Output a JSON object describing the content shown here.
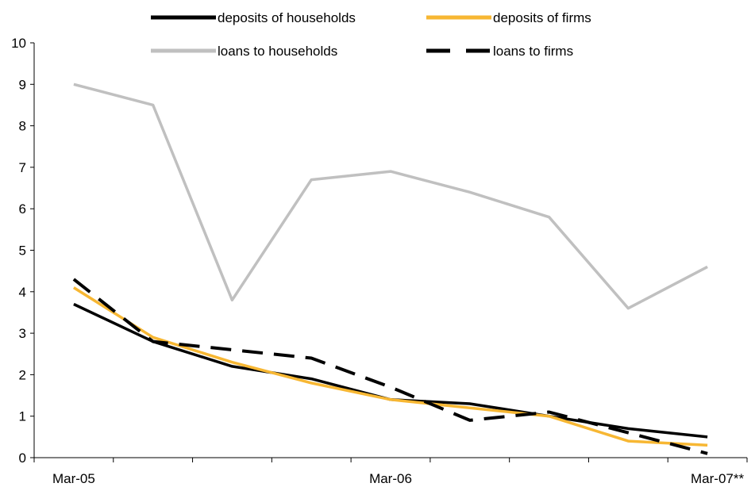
{
  "chart_data": {
    "type": "line",
    "title": "",
    "xlabel": "",
    "ylabel": "",
    "ylim": [
      0,
      10
    ],
    "yticks": [
      0,
      1,
      2,
      3,
      4,
      5,
      6,
      7,
      8,
      9,
      10
    ],
    "x_points": 9,
    "x_tick_labels": [
      {
        "label": "Mar-05",
        "point": 0
      },
      {
        "label": "Mar-06",
        "point": 4
      },
      {
        "label": "Mar-07**",
        "point": 8
      }
    ],
    "grid": false,
    "legend": "top",
    "series": [
      {
        "name": "deposits of households",
        "color": "#000000",
        "style": "solid",
        "values": [
          3.7,
          2.8,
          2.2,
          1.9,
          1.4,
          1.3,
          1.0,
          0.7,
          0.5
        ]
      },
      {
        "name": "deposits of firms",
        "color": "#F7B733",
        "style": "solid",
        "values": [
          4.1,
          2.9,
          2.3,
          1.8,
          1.4,
          1.2,
          1.0,
          0.4,
          0.3
        ]
      },
      {
        "name": "loans to households",
        "color": "#C0C0C0",
        "style": "solid",
        "values": [
          9.0,
          8.5,
          3.8,
          6.7,
          6.9,
          6.4,
          5.8,
          3.6,
          4.6
        ]
      },
      {
        "name": "loans to firms",
        "color": "#000000",
        "style": "dashed",
        "values": [
          4.3,
          2.8,
          2.6,
          2.4,
          1.7,
          0.9,
          1.1,
          0.6,
          0.1
        ]
      }
    ]
  }
}
